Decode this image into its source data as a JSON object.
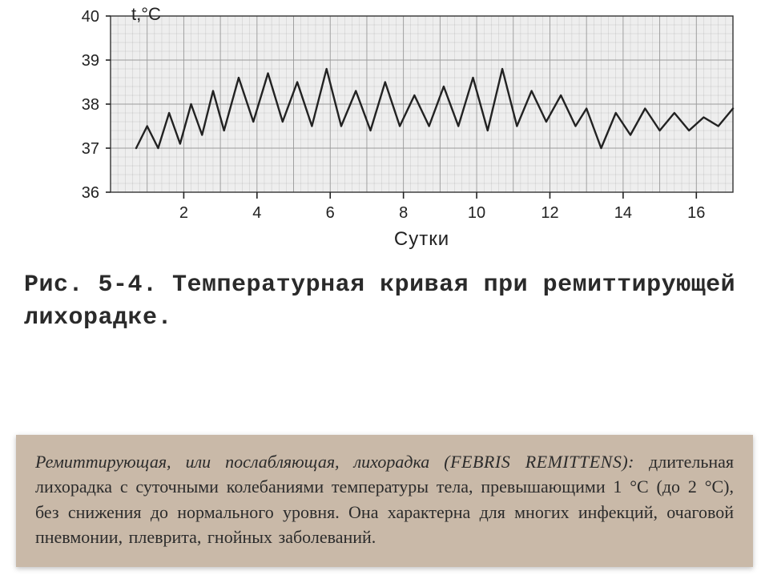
{
  "chart": {
    "type": "line",
    "y_title": "t,°C",
    "x_title": "Сутки",
    "ylim": [
      36,
      40
    ],
    "xlim": [
      0,
      17
    ],
    "ytick_labels": [
      "36",
      "37",
      "38",
      "39",
      "40"
    ],
    "ytick_values": [
      36,
      37,
      38,
      39,
      40
    ],
    "xtick_labels": [
      "2",
      "4",
      "6",
      "8",
      "10",
      "12",
      "14",
      "16"
    ],
    "xtick_values": [
      2,
      4,
      6,
      8,
      10,
      12,
      14,
      16
    ],
    "grid_color": "#9a9a9a",
    "grid_minor_divisions": 5,
    "line_color": "#222222",
    "line_width": 2.4,
    "background_color": "#eeeeee",
    "axis_font": "Arial",
    "y_title_fontsize": 22,
    "x_title_fontsize": 24,
    "tick_fontsize": 20,
    "data": [
      {
        "x": 0.7,
        "y": 37.0
      },
      {
        "x": 1.0,
        "y": 37.5
      },
      {
        "x": 1.3,
        "y": 37.0
      },
      {
        "x": 1.6,
        "y": 37.8
      },
      {
        "x": 1.9,
        "y": 37.1
      },
      {
        "x": 2.2,
        "y": 38.0
      },
      {
        "x": 2.5,
        "y": 37.3
      },
      {
        "x": 2.8,
        "y": 38.3
      },
      {
        "x": 3.1,
        "y": 37.4
      },
      {
        "x": 3.5,
        "y": 38.6
      },
      {
        "x": 3.9,
        "y": 37.6
      },
      {
        "x": 4.3,
        "y": 38.7
      },
      {
        "x": 4.7,
        "y": 37.6
      },
      {
        "x": 5.1,
        "y": 38.5
      },
      {
        "x": 5.5,
        "y": 37.5
      },
      {
        "x": 5.9,
        "y": 38.8
      },
      {
        "x": 6.3,
        "y": 37.5
      },
      {
        "x": 6.7,
        "y": 38.3
      },
      {
        "x": 7.1,
        "y": 37.4
      },
      {
        "x": 7.5,
        "y": 38.5
      },
      {
        "x": 7.9,
        "y": 37.5
      },
      {
        "x": 8.3,
        "y": 38.2
      },
      {
        "x": 8.7,
        "y": 37.5
      },
      {
        "x": 9.1,
        "y": 38.4
      },
      {
        "x": 9.5,
        "y": 37.5
      },
      {
        "x": 9.9,
        "y": 38.6
      },
      {
        "x": 10.3,
        "y": 37.4
      },
      {
        "x": 10.7,
        "y": 38.8
      },
      {
        "x": 11.1,
        "y": 37.5
      },
      {
        "x": 11.5,
        "y": 38.3
      },
      {
        "x": 11.9,
        "y": 37.6
      },
      {
        "x": 12.3,
        "y": 38.2
      },
      {
        "x": 12.7,
        "y": 37.5
      },
      {
        "x": 13.0,
        "y": 37.9
      },
      {
        "x": 13.4,
        "y": 37.0
      },
      {
        "x": 13.8,
        "y": 37.8
      },
      {
        "x": 14.2,
        "y": 37.3
      },
      {
        "x": 14.6,
        "y": 37.9
      },
      {
        "x": 15.0,
        "y": 37.4
      },
      {
        "x": 15.4,
        "y": 37.8
      },
      {
        "x": 15.8,
        "y": 37.4
      },
      {
        "x": 16.2,
        "y": 37.7
      },
      {
        "x": 16.6,
        "y": 37.5
      },
      {
        "x": 17.0,
        "y": 37.9
      }
    ]
  },
  "caption": {
    "prefix": "Рис. 5-4.",
    "title": "Температурная кривая при ремиттирующей лихорадке."
  },
  "description": {
    "lead": "Ремиттирующая, или послабляющая, лихорадка",
    "latin": "(FEBRIS REMITTENS):",
    "body": "длительная лихорадка с суточными колебаниями температуры тела, превышающими 1 °С (до 2 °С), без снижения до нормального уровня. Она характерна для многих инфекций, очаговой пневмонии, плеврита, гнойных заболеваний."
  }
}
